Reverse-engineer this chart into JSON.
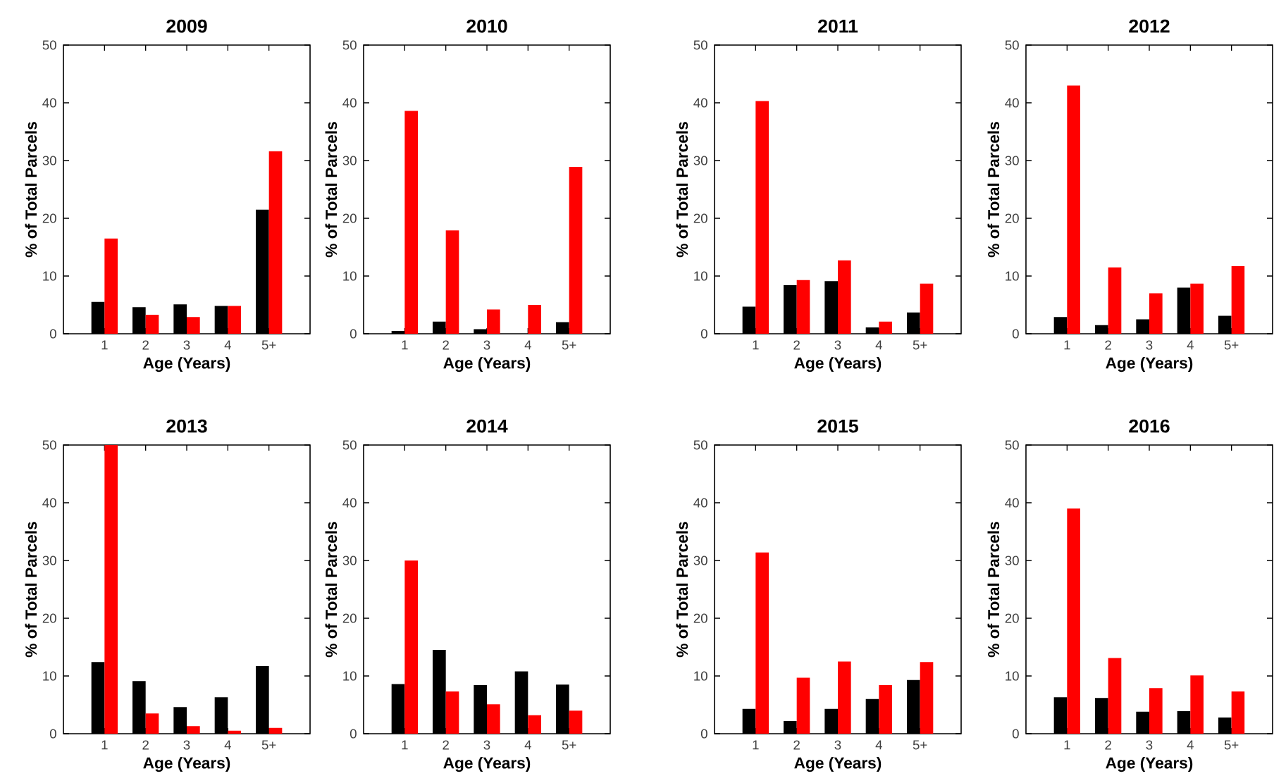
{
  "chart_data": [
    {
      "type": "bar",
      "title": "2009",
      "xlabel": "Age (Years)",
      "ylabel": "% of Total Parcels",
      "categories": [
        "1",
        "2",
        "3",
        "4",
        "5+"
      ],
      "series": [
        {
          "color": "#000000",
          "values": [
            5.5,
            4.6,
            5.1,
            4.8,
            21.5
          ]
        },
        {
          "color": "#ff0000",
          "values": [
            16.5,
            3.3,
            2.9,
            4.8,
            31.6
          ]
        }
      ],
      "ylim": [
        0,
        50
      ],
      "yticks": [
        0,
        10,
        20,
        30,
        40,
        50
      ],
      "grid": false
    },
    {
      "type": "bar",
      "title": "2010",
      "xlabel": "Age (Years)",
      "ylabel": "% of Total Parcels",
      "categories": [
        "1",
        "2",
        "3",
        "4",
        "5+"
      ],
      "series": [
        {
          "color": "#000000",
          "values": [
            0.5,
            2.1,
            0.8,
            0,
            2.0
          ]
        },
        {
          "color": "#ff0000",
          "values": [
            38.6,
            17.9,
            4.2,
            5.0,
            28.9
          ]
        }
      ],
      "ylim": [
        0,
        50
      ],
      "yticks": [
        0,
        10,
        20,
        30,
        40,
        50
      ],
      "grid": false
    },
    {
      "type": "bar",
      "title": "2011",
      "xlabel": "Age (Years)",
      "ylabel": "% of Total Parcels",
      "categories": [
        "1",
        "2",
        "3",
        "4",
        "5+"
      ],
      "series": [
        {
          "color": "#000000",
          "values": [
            4.7,
            8.4,
            9.1,
            1.1,
            3.7
          ]
        },
        {
          "color": "#ff0000",
          "values": [
            40.3,
            9.3,
            12.7,
            2.1,
            8.7
          ]
        }
      ],
      "ylim": [
        0,
        50
      ],
      "yticks": [
        0,
        10,
        20,
        30,
        40,
        50
      ],
      "grid": false
    },
    {
      "type": "bar",
      "title": "2012",
      "xlabel": "Age (Years)",
      "ylabel": "% of Total Parcels",
      "categories": [
        "1",
        "2",
        "3",
        "4",
        "5+"
      ],
      "series": [
        {
          "color": "#000000",
          "values": [
            2.9,
            1.5,
            2.5,
            8.0,
            3.1
          ]
        },
        {
          "color": "#ff0000",
          "values": [
            43.0,
            11.5,
            7.0,
            8.7,
            11.7
          ]
        }
      ],
      "ylim": [
        0,
        50
      ],
      "yticks": [
        0,
        10,
        20,
        30,
        40,
        50
      ],
      "grid": false
    },
    {
      "type": "bar",
      "title": "2013",
      "xlabel": "Age (Years)",
      "ylabel": "% of Total Parcels",
      "categories": [
        "1",
        "2",
        "3",
        "4",
        "5+"
      ],
      "series": [
        {
          "color": "#000000",
          "values": [
            12.4,
            9.1,
            4.6,
            6.3,
            11.7
          ]
        },
        {
          "color": "#ff0000",
          "values": [
            50,
            3.5,
            1.3,
            0.5,
            1.0
          ]
        }
      ],
      "ylim": [
        0,
        50
      ],
      "yticks": [
        0,
        10,
        20,
        30,
        40,
        50
      ],
      "grid": false
    },
    {
      "type": "bar",
      "title": "2014",
      "xlabel": "Age (Years)",
      "ylabel": "% of Total Parcels",
      "categories": [
        "1",
        "2",
        "3",
        "4",
        "5+"
      ],
      "series": [
        {
          "color": "#000000",
          "values": [
            8.6,
            14.5,
            8.4,
            10.8,
            8.5
          ]
        },
        {
          "color": "#ff0000",
          "values": [
            30.0,
            7.3,
            5.1,
            3.2,
            4.0
          ]
        }
      ],
      "ylim": [
        0,
        50
      ],
      "yticks": [
        0,
        10,
        20,
        30,
        40,
        50
      ],
      "grid": false
    },
    {
      "type": "bar",
      "title": "2015",
      "xlabel": "Age (Years)",
      "ylabel": "% of Total Parcels",
      "categories": [
        "1",
        "2",
        "3",
        "4",
        "5+"
      ],
      "series": [
        {
          "color": "#000000",
          "values": [
            4.3,
            2.2,
            4.3,
            6.0,
            9.3
          ]
        },
        {
          "color": "#ff0000",
          "values": [
            31.4,
            9.7,
            12.5,
            8.4,
            12.4
          ]
        }
      ],
      "ylim": [
        0,
        50
      ],
      "yticks": [
        0,
        10,
        20,
        30,
        40,
        50
      ],
      "grid": false
    },
    {
      "type": "bar",
      "title": "2016",
      "xlabel": "Age (Years)",
      "ylabel": "% of Total Parcels",
      "categories": [
        "1",
        "2",
        "3",
        "4",
        "5+"
      ],
      "series": [
        {
          "color": "#000000",
          "values": [
            6.3,
            6.2,
            3.8,
            3.9,
            2.8
          ]
        },
        {
          "color": "#ff0000",
          "values": [
            39.0,
            13.1,
            7.9,
            10.1,
            7.3
          ]
        }
      ],
      "ylim": [
        0,
        50
      ],
      "yticks": [
        0,
        10,
        20,
        30,
        40,
        50
      ],
      "grid": false
    }
  ]
}
